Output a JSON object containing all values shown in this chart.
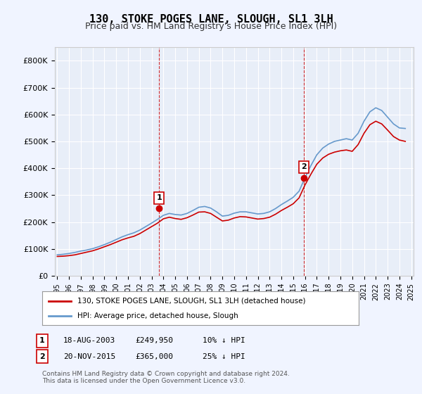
{
  "title": "130, STOKE POGES LANE, SLOUGH, SL1 3LH",
  "subtitle": "Price paid vs. HM Land Registry's House Price Index (HPI)",
  "background_color": "#f0f4ff",
  "plot_bg_color": "#e8eef8",
  "ylim": [
    0,
    850000
  ],
  "yticks": [
    0,
    100000,
    200000,
    300000,
    400000,
    500000,
    600000,
    700000,
    800000
  ],
  "ytick_labels": [
    "£0",
    "£100K",
    "£200K",
    "£300K",
    "£400K",
    "£500K",
    "£600K",
    "£700K",
    "£800K"
  ],
  "purchase1_date": 2003.63,
  "purchase1_price": 249950,
  "purchase1_label": "1",
  "purchase2_date": 2015.9,
  "purchase2_price": 365000,
  "purchase2_label": "2",
  "hpi_color": "#6699cc",
  "price_color": "#cc0000",
  "vline_color": "#cc0000",
  "legend_label1": "130, STOKE POGES LANE, SLOUGH, SL1 3LH (detached house)",
  "legend_label2": "HPI: Average price, detached house, Slough",
  "table_row1": [
    "1",
    "18-AUG-2003",
    "£249,950",
    "10% ↓ HPI"
  ],
  "table_row2": [
    "2",
    "20-NOV-2015",
    "£365,000",
    "25% ↓ HPI"
  ],
  "footer": "Contains HM Land Registry data © Crown copyright and database right 2024.\nThis data is licensed under the Open Government Licence v3.0.",
  "hpi_x": [
    1995.0,
    1995.5,
    1996.0,
    1996.5,
    1997.0,
    1997.5,
    1998.0,
    1998.5,
    1999.0,
    1999.5,
    2000.0,
    2000.5,
    2001.0,
    2001.5,
    2002.0,
    2002.5,
    2003.0,
    2003.5,
    2004.0,
    2004.5,
    2005.0,
    2005.5,
    2006.0,
    2006.5,
    2007.0,
    2007.5,
    2008.0,
    2008.5,
    2009.0,
    2009.5,
    2010.0,
    2010.5,
    2011.0,
    2011.5,
    2012.0,
    2012.5,
    2013.0,
    2013.5,
    2014.0,
    2014.5,
    2015.0,
    2015.5,
    2016.0,
    2016.5,
    2017.0,
    2017.5,
    2018.0,
    2018.5,
    2019.0,
    2019.5,
    2020.0,
    2020.5,
    2021.0,
    2021.5,
    2022.0,
    2022.5,
    2023.0,
    2023.5,
    2024.0,
    2024.5
  ],
  "hpi_y": [
    78000,
    80000,
    83000,
    87000,
    92000,
    96000,
    101000,
    108000,
    116000,
    125000,
    135000,
    145000,
    153000,
    160000,
    170000,
    183000,
    196000,
    210000,
    225000,
    232000,
    228000,
    226000,
    232000,
    243000,
    255000,
    258000,
    252000,
    238000,
    222000,
    225000,
    233000,
    238000,
    238000,
    234000,
    230000,
    232000,
    238000,
    250000,
    265000,
    278000,
    292000,
    315000,
    365000,
    410000,
    450000,
    475000,
    490000,
    500000,
    505000,
    510000,
    505000,
    530000,
    575000,
    610000,
    625000,
    615000,
    590000,
    565000,
    550000,
    548000
  ],
  "price_x": [
    1995.0,
    1995.5,
    1996.0,
    1996.5,
    1997.0,
    1997.5,
    1998.0,
    1998.5,
    1999.0,
    1999.5,
    2000.0,
    2000.5,
    2001.0,
    2001.5,
    2002.0,
    2002.5,
    2003.0,
    2003.5,
    2004.0,
    2004.5,
    2005.0,
    2005.5,
    2006.0,
    2006.5,
    2007.0,
    2007.5,
    2008.0,
    2008.5,
    2009.0,
    2009.5,
    2010.0,
    2010.5,
    2011.0,
    2011.5,
    2012.0,
    2012.5,
    2013.0,
    2013.5,
    2014.0,
    2014.5,
    2015.0,
    2015.5,
    2016.0,
    2016.5,
    2017.0,
    2017.5,
    2018.0,
    2018.5,
    2019.0,
    2019.5,
    2020.0,
    2020.5,
    2021.0,
    2021.5,
    2022.0,
    2022.5,
    2023.0,
    2023.5,
    2024.0,
    2024.5
  ],
  "price_y": [
    72000,
    73000,
    75000,
    78000,
    83000,
    88000,
    93000,
    100000,
    108000,
    116000,
    125000,
    134000,
    141000,
    147000,
    157000,
    170000,
    183000,
    196000,
    212000,
    218000,
    213000,
    210000,
    216000,
    226000,
    237000,
    238000,
    232000,
    218000,
    204000,
    207000,
    215000,
    220000,
    219000,
    215000,
    211000,
    213000,
    218000,
    229000,
    243000,
    255000,
    268000,
    290000,
    338000,
    378000,
    415000,
    438000,
    452000,
    460000,
    465000,
    468000,
    463000,
    488000,
    530000,
    562000,
    575000,
    565000,
    542000,
    518000,
    505000,
    500000
  ],
  "xtick_years": [
    1995,
    1996,
    1997,
    1998,
    1999,
    2000,
    2001,
    2002,
    2003,
    2004,
    2005,
    2006,
    2007,
    2008,
    2009,
    2010,
    2011,
    2012,
    2013,
    2014,
    2015,
    2016,
    2017,
    2018,
    2019,
    2020,
    2021,
    2022,
    2023,
    2024,
    2025
  ]
}
